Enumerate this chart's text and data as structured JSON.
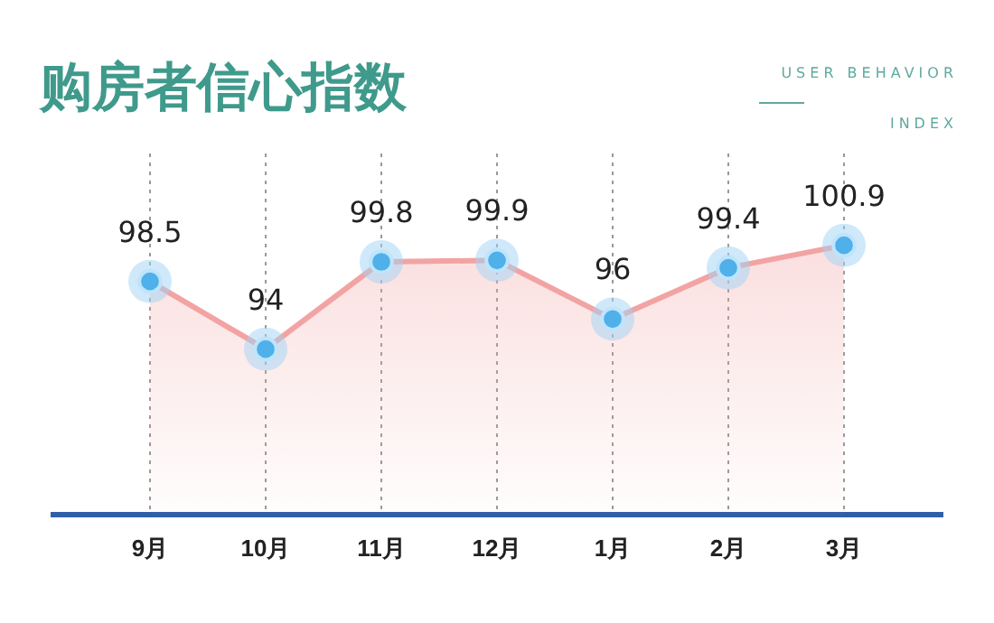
{
  "chart_data": {
    "type": "area",
    "title": "购房者信心指数",
    "subtitle": "USER BEHAVIOR INDEX",
    "categories": [
      "9月",
      "10月",
      "11月",
      "12月",
      "1月",
      "2月",
      "3月"
    ],
    "series": [
      {
        "color": "#f2a3a3",
        "values": [
          98.5,
          94,
          99.8,
          99.9,
          96,
          99.4,
          100.9
        ]
      }
    ],
    "ylim": [
      83,
      107
    ],
    "tick_labels": "x",
    "data_labels": true,
    "grid": "x",
    "marker": "circle"
  }
}
